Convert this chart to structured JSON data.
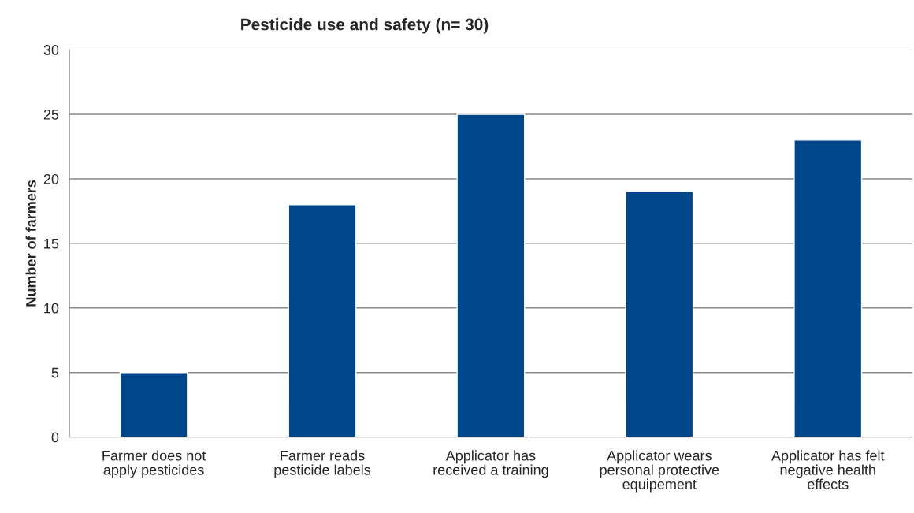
{
  "chart_data": {
    "type": "bar",
    "title": "Pesticide use and safety (n= 30)",
    "ylabel": "Number of farmers",
    "categories": [
      "Farmer does not\napply pesticides",
      "Farmer reads\npesticide labels",
      "Applicator has\nreceived a training",
      "Applicator wears\npersonal protective\nequipement",
      "Applicator has felt\nnegative health\neffects"
    ],
    "values": [
      5,
      18,
      25,
      19,
      23
    ],
    "color": "#00468b",
    "ylim": [
      0,
      30
    ],
    "yticks": [
      0,
      5,
      10,
      15,
      20,
      25,
      30
    ],
    "grid": "y",
    "legend": false
  }
}
